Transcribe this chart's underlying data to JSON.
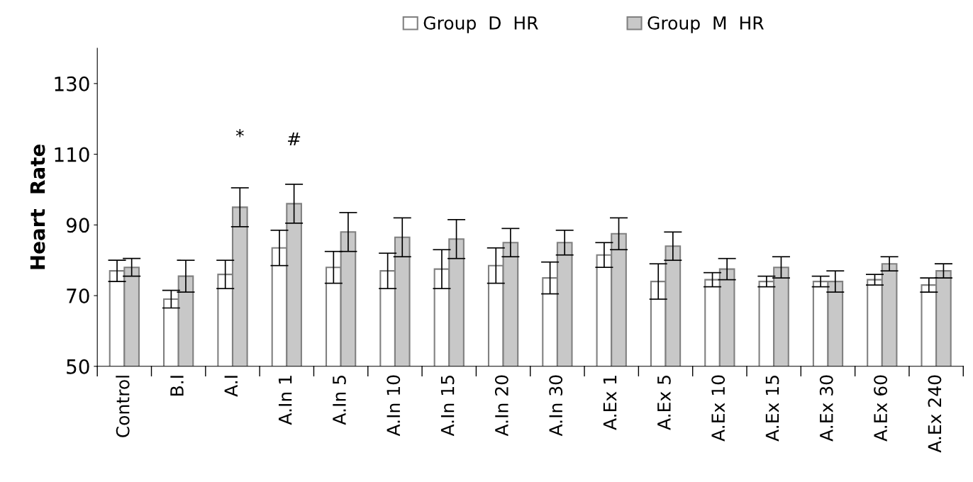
{
  "chart_data": {
    "type": "bar",
    "ylabel": "Heart  Rate",
    "categories": [
      "Control",
      "B.I",
      "A.I",
      "A.In 1",
      "A.In 5",
      "A.In 10",
      "A.In 15",
      "A.In 20",
      "A.In 30",
      "A.Ex 1",
      "A.Ex 5",
      "A.Ex 10",
      "A.Ex 15",
      "A.Ex 30",
      "A.Ex 60",
      "A.Ex 240"
    ],
    "series": [
      {
        "name": "Group  D  HR",
        "color": "#ffffff",
        "values": [
          77,
          69,
          76,
          83.5,
          78,
          77,
          77.5,
          78.5,
          75,
          81.5,
          74,
          74.5,
          74,
          74,
          74.5,
          73
        ],
        "errors": [
          3,
          2.5,
          4,
          5,
          4.5,
          5,
          5.5,
          5,
          4.5,
          3.5,
          5,
          2,
          1.5,
          1.5,
          1.5,
          2
        ]
      },
      {
        "name": "Group  M  HR",
        "color": "#c8c8c8",
        "values": [
          78,
          75.5,
          95,
          96,
          88,
          86.5,
          86,
          85,
          85,
          87.5,
          84,
          77.5,
          78,
          74,
          79,
          77
        ],
        "errors": [
          2.5,
          4.5,
          5.5,
          5.5,
          5.5,
          5.5,
          5.5,
          4,
          3.5,
          4.5,
          4,
          3,
          3,
          3,
          2,
          2
        ]
      }
    ],
    "ylim": [
      50,
      140
    ],
    "yticks": [
      50,
      70,
      90,
      110,
      130
    ],
    "grid": false,
    "legend": "top",
    "annotations": [
      "*",
      "#"
    ]
  }
}
